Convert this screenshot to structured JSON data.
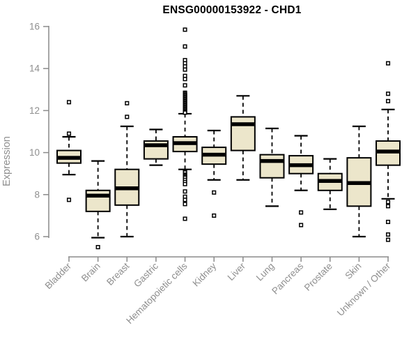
{
  "header": {
    "title": "ENSG00000153922 - CHD1"
  },
  "colors": {
    "box_fill": "#ece6cb",
    "box_stroke": "#000000",
    "median": "#000000",
    "whisker": "#000000",
    "outlier_fill": "#ffffff",
    "axis_line": "#8a8a8a",
    "axis_text": "#8e8e8e",
    "title_text": "#000000"
  },
  "chart_data": {
    "type": "boxplot",
    "title": "ENSG00000153922 - CHD1",
    "xlabel": "",
    "ylabel": "Expression",
    "ylim": [
      5.4,
      16
    ],
    "yticks": [
      6,
      8,
      10,
      12,
      14,
      16
    ],
    "grid": "off",
    "legend": "none",
    "categories": [
      "Bladder",
      "Brain",
      "Breast",
      "Gastric",
      "Hematopoietic cells",
      "Kidney",
      "Liver",
      "Lung",
      "Pancreas",
      "Prostate",
      "Skin",
      "Unknown / Other"
    ],
    "series": [
      {
        "category": "Bladder",
        "whisker_low": 8.95,
        "q1": 9.5,
        "median": 9.75,
        "q3": 10.1,
        "whisker_high": 10.75,
        "outliers": [
          12.4,
          10.9,
          7.75
        ]
      },
      {
        "category": "Brain",
        "whisker_low": 5.95,
        "q1": 7.2,
        "median": 7.95,
        "q3": 8.2,
        "whisker_high": 9.6,
        "outliers": [
          5.5
        ]
      },
      {
        "category": "Breast",
        "whisker_low": 6.0,
        "q1": 7.5,
        "median": 8.3,
        "q3": 9.2,
        "whisker_high": 11.25,
        "outliers": [
          12.35,
          11.7
        ]
      },
      {
        "category": "Gastric",
        "whisker_low": 9.4,
        "q1": 9.7,
        "median": 10.35,
        "q3": 10.55,
        "whisker_high": 11.1,
        "outliers": []
      },
      {
        "category": "Hematopoietic cells",
        "whisker_low": 9.2,
        "q1": 10.05,
        "median": 10.45,
        "q3": 10.75,
        "whisker_high": 11.85,
        "outliers": [
          15.85,
          15.05,
          14.4,
          14.25,
          14.1,
          13.95,
          13.65,
          13.5,
          13.2,
          12.85,
          12.8,
          12.75,
          12.7,
          12.65,
          12.6,
          12.55,
          12.5,
          12.45,
          12.4,
          12.35,
          12.3,
          12.25,
          12.2,
          12.15,
          12.1,
          12.05,
          12.0,
          11.95,
          11.9,
          9.1,
          9.05,
          8.95,
          8.9,
          8.85,
          8.8,
          8.7,
          8.6,
          8.5,
          8.15,
          7.9,
          7.75,
          7.55,
          6.85
        ]
      },
      {
        "category": "Kidney",
        "whisker_low": 8.7,
        "q1": 9.45,
        "median": 9.9,
        "q3": 10.25,
        "whisker_high": 11.05,
        "outliers": [
          8.1,
          7.0
        ]
      },
      {
        "category": "Liver",
        "whisker_low": 8.7,
        "q1": 10.1,
        "median": 11.35,
        "q3": 11.7,
        "whisker_high": 12.7,
        "outliers": []
      },
      {
        "category": "Lung",
        "whisker_low": 7.45,
        "q1": 8.8,
        "median": 9.6,
        "q3": 9.9,
        "whisker_high": 11.15,
        "outliers": []
      },
      {
        "category": "Pancreas",
        "whisker_low": 8.2,
        "q1": 9.0,
        "median": 9.4,
        "q3": 9.85,
        "whisker_high": 10.8,
        "outliers": [
          7.15,
          6.55
        ]
      },
      {
        "category": "Prostate",
        "whisker_low": 7.3,
        "q1": 8.2,
        "median": 8.65,
        "q3": 9.0,
        "whisker_high": 9.7,
        "outliers": []
      },
      {
        "category": "Skin",
        "whisker_low": 6.0,
        "q1": 7.45,
        "median": 8.55,
        "q3": 9.75,
        "whisker_high": 11.25,
        "outliers": []
      },
      {
        "category": "Unknown / Other",
        "whisker_low": 7.8,
        "q1": 9.4,
        "median": 10.05,
        "q3": 10.55,
        "whisker_high": 12.05,
        "outliers": [
          14.25,
          12.8,
          12.45,
          7.65,
          7.45,
          6.7,
          6.1,
          5.85
        ]
      }
    ]
  }
}
